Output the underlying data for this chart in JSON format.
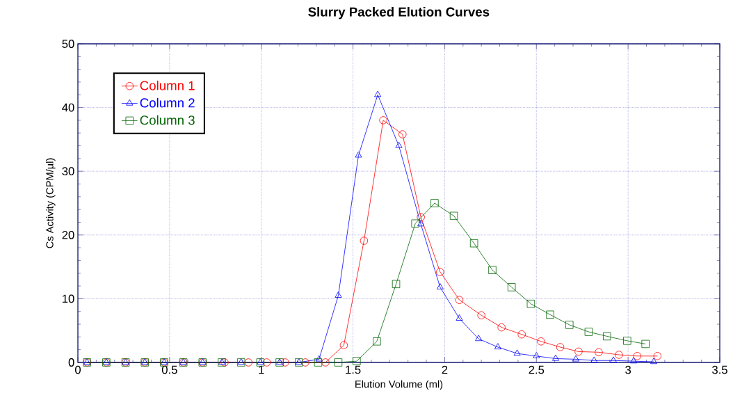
{
  "chart_data": {
    "type": "line",
    "title": "Slurry Packed Elution Curves",
    "xlabel": "Elution Volume (ml)",
    "ylabel": "Cs Activity (CPM/µl)",
    "xlim": [
      0,
      3.5
    ],
    "ylim": [
      0,
      50
    ],
    "xticks": [
      0,
      0.5,
      1,
      1.5,
      2,
      2.5,
      3,
      3.5
    ],
    "yticks": [
      0,
      10,
      20,
      30,
      40,
      50
    ],
    "grid": true,
    "legend": "top left",
    "line_style": "solid",
    "series": [
      {
        "name": "Column 1",
        "color": "#ff0000",
        "marker": "circle",
        "x": [
          0.05,
          0.155,
          0.26,
          0.365,
          0.47,
          0.575,
          0.68,
          0.8,
          0.93,
          1.03,
          1.13,
          1.24,
          1.35,
          1.45,
          1.56,
          1.665,
          1.77,
          1.87,
          1.975,
          2.08,
          2.2,
          2.31,
          2.42,
          2.525,
          2.63,
          2.73,
          2.84,
          2.95,
          3.05,
          3.16
        ],
        "values": [
          0,
          0,
          0,
          0,
          0,
          0,
          0,
          0,
          0,
          0,
          0,
          0,
          0,
          2.7,
          19.1,
          38,
          35.8,
          22.8,
          14.2,
          9.8,
          7.4,
          5.5,
          4.4,
          3.3,
          2.4,
          1.7,
          1.6,
          1.2,
          1.0,
          1.0
        ]
      },
      {
        "name": "Column 2",
        "color": "#0000ff",
        "marker": "triangle",
        "x": [
          0.05,
          0.155,
          0.26,
          0.365,
          0.47,
          0.575,
          0.68,
          0.785,
          0.89,
          0.995,
          1.1,
          1.205,
          1.315,
          1.42,
          1.53,
          1.635,
          1.75,
          1.87,
          1.975,
          2.08,
          2.185,
          2.29,
          2.395,
          2.5,
          2.605,
          2.715,
          2.815,
          2.92,
          3.03,
          3.14
        ],
        "values": [
          0,
          0,
          0,
          0,
          0,
          0,
          0,
          0,
          0,
          0,
          0,
          0,
          0.5,
          10.5,
          32.5,
          42,
          34,
          21.7,
          11.8,
          6.9,
          3.7,
          2.4,
          1.4,
          1.0,
          0.6,
          0.5,
          0.3,
          0.3,
          0.2,
          0.1
        ]
      },
      {
        "name": "Column 3",
        "color": "#006400",
        "marker": "square",
        "x": [
          0.05,
          0.155,
          0.26,
          0.365,
          0.47,
          0.575,
          0.68,
          0.785,
          0.89,
          0.995,
          1.1,
          1.205,
          1.31,
          1.42,
          1.52,
          1.63,
          1.735,
          1.84,
          1.945,
          2.05,
          2.16,
          2.26,
          2.365,
          2.47,
          2.575,
          2.68,
          2.785,
          2.885,
          2.995,
          3.095
        ],
        "values": [
          0,
          0,
          0,
          0,
          0,
          0,
          0,
          0,
          0,
          0,
          0,
          0,
          0,
          0,
          0.2,
          3.3,
          12.3,
          21.8,
          25,
          23,
          18.7,
          14.5,
          11.8,
          9.2,
          7.5,
          5.9,
          4.8,
          4.1,
          3.4,
          2.9
        ]
      }
    ]
  }
}
